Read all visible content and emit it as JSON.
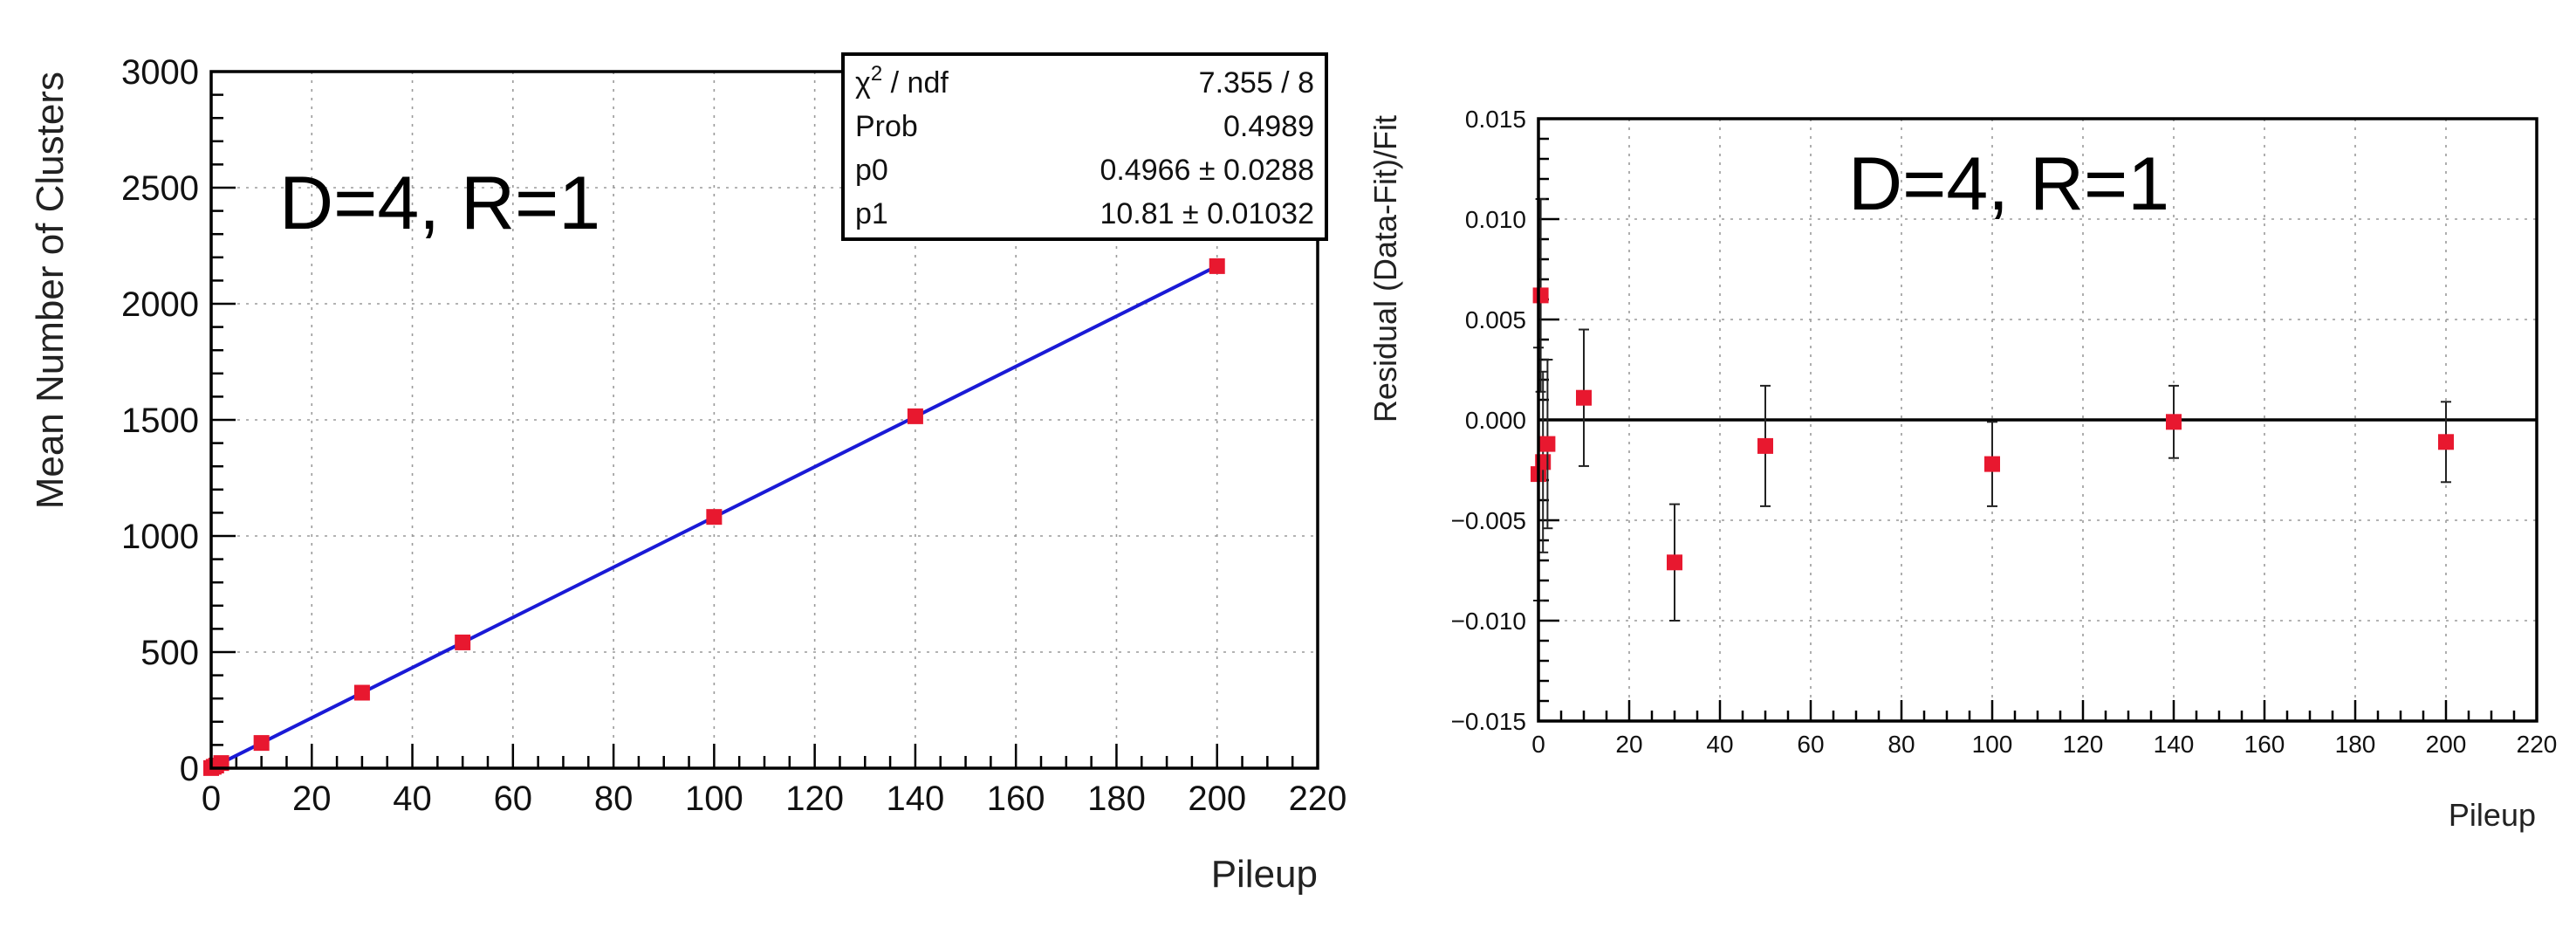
{
  "chart_data": [
    {
      "type": "scatter",
      "title": "",
      "xlabel": "Pileup",
      "ylabel": "Mean Number of Clusters",
      "xlim": [
        0,
        220
      ],
      "ylim": [
        0,
        3000
      ],
      "x_ticks": [
        "0",
        "20",
        "40",
        "60",
        "80",
        "100",
        "120",
        "140",
        "160",
        "180",
        "200",
        "220"
      ],
      "y_ticks": [
        "0",
        "500",
        "1000",
        "1500",
        "2000",
        "2500",
        "3000"
      ],
      "grid": true,
      "annotation": "D=4,  R=1",
      "series": [
        {
          "x": [
            0,
            0.5,
            1,
            2,
            10,
            30,
            50,
            100,
            140,
            200
          ],
          "y": [
            0.5,
            5.9,
            11.3,
            22.1,
            108.6,
            325.1,
            541.6,
            1082.1,
            1515.5,
            2162.1
          ]
        }
      ],
      "fit": {
        "function": "linear",
        "p0": 0.4966,
        "p1": 10.81
      },
      "stats_box": {
        "position": "top-right",
        "rows": [
          {
            "label_main": "χ",
            "label_sup": "2",
            "label_rest": " / ndf",
            "value": "7.355 / 8"
          },
          {
            "label_main": "Prob",
            "label_sup": "",
            "label_rest": "",
            "value": "0.4989"
          },
          {
            "label_main": "p0",
            "label_sup": "",
            "label_rest": "",
            "value": "0.4966 ± 0.0288"
          },
          {
            "label_main": "p1",
            "label_sup": "",
            "label_rest": "",
            "value": "10.81 ± 0.01032"
          }
        ]
      }
    },
    {
      "type": "scatter",
      "title": "",
      "xlabel": "Pileup",
      "ylabel": "Residual   (Data-Fit)/Fit",
      "xlim": [
        0,
        220
      ],
      "ylim": [
        -0.015,
        0.015
      ],
      "x_ticks": [
        "0",
        "20",
        "40",
        "60",
        "80",
        "100",
        "120",
        "140",
        "160",
        "180",
        "200",
        "220"
      ],
      "y_ticks": [
        "−0.015",
        "−0.010",
        "−0.005",
        "0.000",
        "0.005",
        "0.010",
        "0.015"
      ],
      "grid": true,
      "annotation": "D=4,  R=1",
      "reference_line": 0.0,
      "series": [
        {
          "x": [
            0,
            0.5,
            1,
            2,
            10,
            30,
            50,
            100,
            140,
            200
          ],
          "y": [
            -0.0027,
            0.0062,
            -0.0021,
            -0.0012,
            0.0011,
            -0.0071,
            -0.0013,
            -0.0022,
            -0.0001,
            -0.0011
          ],
          "err": [
            0.0063,
            0.0048,
            0.0045,
            0.0042,
            0.0034,
            0.0029,
            0.003,
            0.0021,
            0.0018,
            0.002
          ]
        }
      ]
    }
  ]
}
